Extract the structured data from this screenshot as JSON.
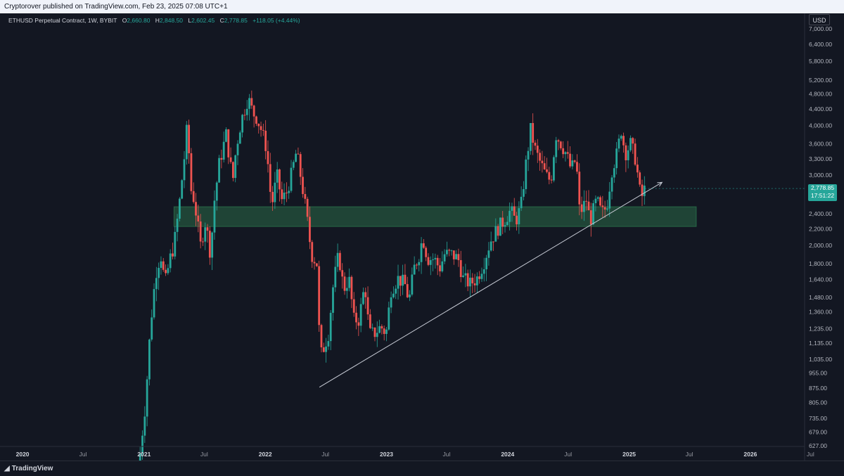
{
  "header": {
    "published": "Cryptorover published on TradingView.com, Feb 23, 2025 07:08 UTC+1"
  },
  "legend": {
    "symbol": "ETHUSD Perpetual Contract, 1W, BYBIT",
    "o_label": "O",
    "o": "2,660.80",
    "h_label": "H",
    "h": "2,848.50",
    "l_label": "L",
    "l": "2,602.45",
    "c_label": "C",
    "c": "2,778.85",
    "change": "+118.05 (+4.44%)"
  },
  "currency": "USD",
  "last_price": {
    "value": "2,778.85",
    "countdown": "17:51:22"
  },
  "footer": {
    "brand": "TradingView"
  },
  "colors": {
    "up": "#26a69a",
    "down": "#ef5350",
    "background": "#131722",
    "zone": "#2e7d50",
    "trendline": "#c8ccd6"
  },
  "chart_data": {
    "type": "candlestick",
    "interval": "1W",
    "scale": "log",
    "grid": false,
    "y_ticks": [
      "7,000.00",
      "6,400.00",
      "5,800.00",
      "5,200.00",
      "4,800.00",
      "4,400.00",
      "4,000.00",
      "3,600.00",
      "3,300.00",
      "3,000.00",
      "2,400.00",
      "2,200.00",
      "2,000.00",
      "1,800.00",
      "1,640.00",
      "1,480.00",
      "1,360.00",
      "1,235.00",
      "1,135.00",
      "1,035.00",
      "955.00",
      "875.00",
      "805.00",
      "735.00",
      "679.00",
      "627.00"
    ],
    "y_tick_values": [
      7000,
      6400,
      5800,
      5200,
      4800,
      4400,
      4000,
      3600,
      3300,
      3000,
      2400,
      2200,
      2000,
      1800,
      1640,
      1480,
      1360,
      1235,
      1135,
      1035,
      955,
      875,
      805,
      735,
      679,
      627
    ],
    "x_ticks": [
      {
        "label": "2020",
        "date": "2020-01-01",
        "major": true
      },
      {
        "label": "Jul",
        "date": "2020-07-01",
        "major": false
      },
      {
        "label": "2021",
        "date": "2021-01-01",
        "major": true
      },
      {
        "label": "Jul",
        "date": "2021-07-01",
        "major": false
      },
      {
        "label": "2022",
        "date": "2022-01-01",
        "major": true
      },
      {
        "label": "Jul",
        "date": "2022-07-01",
        "major": false
      },
      {
        "label": "2023",
        "date": "2023-01-01",
        "major": true
      },
      {
        "label": "Jul",
        "date": "2023-07-01",
        "major": false
      },
      {
        "label": "2024",
        "date": "2024-01-01",
        "major": true
      },
      {
        "label": "Jul",
        "date": "2024-07-01",
        "major": false
      },
      {
        "label": "2025",
        "date": "2025-01-01",
        "major": true
      },
      {
        "label": "Jul",
        "date": "2025-07-01",
        "major": false
      },
      {
        "label": "2026",
        "date": "2026-01-01",
        "major": true
      },
      {
        "label": "Jul",
        "date": "2026-07-01",
        "major": false
      }
    ],
    "x_range": [
      "2019-10-25",
      "2026-10-10"
    ],
    "support_zone": {
      "low": 2230,
      "high": 2500,
      "from": "2021-04-01",
      "to": "2025-07-22"
    },
    "trendline": {
      "start": {
        "date": "2022-06-13",
        "price": 880
      },
      "end": {
        "date": "2025-04-10",
        "price": 2880
      }
    },
    "price_path": [
      [
        "2020-12-20",
        600
      ],
      [
        "2021-01-05",
        800
      ],
      [
        "2021-01-20",
        1250
      ],
      [
        "2021-02-05",
        1700
      ],
      [
        "2021-02-20",
        1900
      ],
      [
        "2021-03-05",
        1600
      ],
      [
        "2021-03-20",
        1850
      ],
      [
        "2021-04-01",
        2000
      ],
      [
        "2021-04-15",
        2450
      ],
      [
        "2021-05-05",
        3500
      ],
      [
        "2021-05-12",
        4150
      ],
      [
        "2021-05-20",
        2800
      ],
      [
        "2021-06-01",
        2600
      ],
      [
        "2021-06-20",
        2000
      ],
      [
        "2021-07-05",
        2300
      ],
      [
        "2021-07-20",
        1900
      ],
      [
        "2021-08-01",
        2600
      ],
      [
        "2021-08-15",
        3200
      ],
      [
        "2021-09-05",
        3800
      ],
      [
        "2021-09-25",
        2900
      ],
      [
        "2021-10-05",
        3500
      ],
      [
        "2021-10-20",
        4100
      ],
      [
        "2021-11-10",
        4700
      ],
      [
        "2021-11-25",
        4300
      ],
      [
        "2021-12-05",
        4200
      ],
      [
        "2021-12-20",
        3900
      ],
      [
        "2022-01-05",
        3500
      ],
      [
        "2022-01-20",
        2500
      ],
      [
        "2022-02-05",
        3000
      ],
      [
        "2022-02-20",
        2600
      ],
      [
        "2022-03-05",
        2700
      ],
      [
        "2022-03-20",
        3000
      ],
      [
        "2022-04-05",
        3450
      ],
      [
        "2022-04-20",
        2900
      ],
      [
        "2022-05-05",
        2400
      ],
      [
        "2022-05-20",
        1900
      ],
      [
        "2022-06-05",
        1800
      ],
      [
        "2022-06-15",
        1050
      ],
      [
        "2022-06-25",
        1100
      ],
      [
        "2022-07-10",
        1200
      ],
      [
        "2022-07-25",
        1600
      ],
      [
        "2022-08-10",
        1900
      ],
      [
        "2022-08-25",
        1550
      ],
      [
        "2022-09-10",
        1650
      ],
      [
        "2022-09-25",
        1300
      ],
      [
        "2022-10-10",
        1300
      ],
      [
        "2022-10-28",
        1600
      ],
      [
        "2022-11-10",
        1200
      ],
      [
        "2022-11-25",
        1200
      ],
      [
        "2022-12-15",
        1250
      ],
      [
        "2022-12-31",
        1200
      ],
      [
        "2023-01-15",
        1550
      ],
      [
        "2023-02-05",
        1650
      ],
      [
        "2023-02-25",
        1600
      ],
      [
        "2023-03-10",
        1450
      ],
      [
        "2023-03-25",
        1750
      ],
      [
        "2023-04-10",
        1900
      ],
      [
        "2023-04-20",
        2100
      ],
      [
        "2023-05-05",
        1850
      ],
      [
        "2023-05-25",
        1850
      ],
      [
        "2023-06-10",
        1750
      ],
      [
        "2023-06-25",
        1900
      ],
      [
        "2023-07-15",
        1900
      ],
      [
        "2023-08-05",
        1850
      ],
      [
        "2023-08-20",
        1650
      ],
      [
        "2023-09-10",
        1600
      ],
      [
        "2023-09-30",
        1650
      ],
      [
        "2023-10-20",
        1800
      ],
      [
        "2023-11-10",
        2050
      ],
      [
        "2023-12-01",
        2200
      ],
      [
        "2023-12-20",
        2300
      ],
      [
        "2024-01-10",
        2450
      ],
      [
        "2024-01-25",
        2300
      ],
      [
        "2024-02-10",
        2500
      ],
      [
        "2024-02-25",
        3200
      ],
      [
        "2024-03-10",
        3900
      ],
      [
        "2024-03-25",
        3450
      ],
      [
        "2024-04-10",
        3200
      ],
      [
        "2024-04-25",
        3000
      ],
      [
        "2024-05-10",
        2900
      ],
      [
        "2024-05-25",
        3800
      ],
      [
        "2024-06-10",
        3600
      ],
      [
        "2024-06-25",
        3400
      ],
      [
        "2024-07-10",
        3100
      ],
      [
        "2024-07-25",
        3300
      ],
      [
        "2024-08-05",
        2400
      ],
      [
        "2024-08-25",
        2600
      ],
      [
        "2024-09-05",
        2300
      ],
      [
        "2024-09-25",
        2600
      ],
      [
        "2024-10-10",
        2400
      ],
      [
        "2024-10-25",
        2500
      ],
      [
        "2024-11-10",
        3100
      ],
      [
        "2024-11-25",
        3400
      ],
      [
        "2024-12-08",
        3900
      ],
      [
        "2024-12-20",
        3400
      ],
      [
        "2025-01-05",
        3600
      ],
      [
        "2025-01-20",
        3300
      ],
      [
        "2025-02-03",
        2700
      ],
      [
        "2025-02-10",
        2650
      ],
      [
        "2025-02-17",
        2778.85
      ]
    ]
  }
}
